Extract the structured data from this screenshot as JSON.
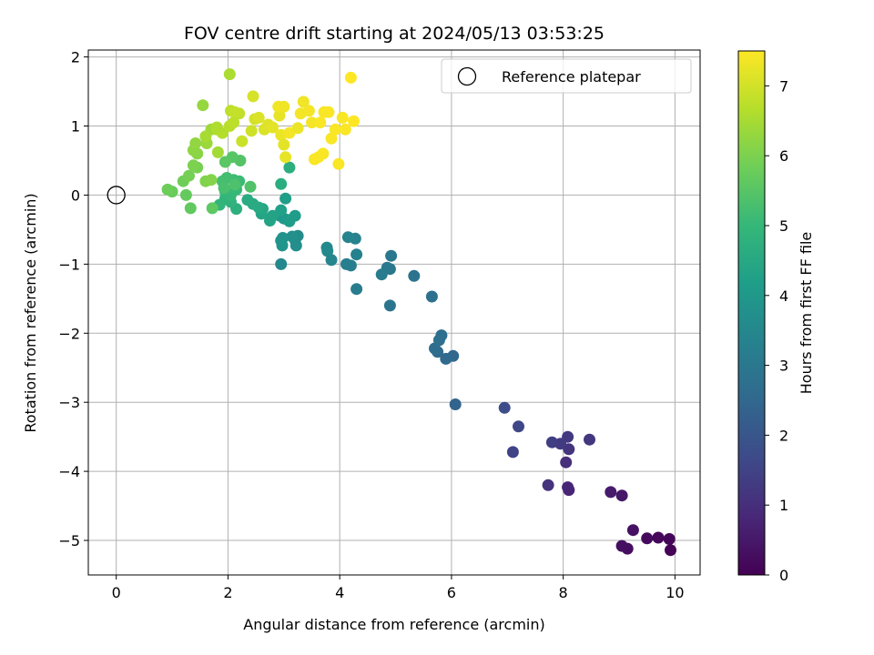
{
  "chart_data": {
    "type": "scatter",
    "title": "FOV centre drift starting at 2024/05/13 03:53:25",
    "xlabel": "Angular distance from reference (arcmin)",
    "ylabel": "Rotation from reference (arcmin)",
    "xlim": [
      -0.5,
      10.45
    ],
    "ylim": [
      -5.5,
      2.1
    ],
    "x_ticks": [
      0,
      2,
      4,
      6,
      8,
      10
    ],
    "x_tick_labels": [
      "0",
      "2",
      "4",
      "6",
      "8",
      "10"
    ],
    "y_ticks": [
      2,
      1,
      0,
      -1,
      -2,
      -3,
      -4,
      -5
    ],
    "y_tick_labels": [
      "2",
      "1",
      "0",
      "−1",
      "−2",
      "−3",
      "−4",
      "−5"
    ],
    "grid": true,
    "legend": {
      "placement": "top-right",
      "entries": [
        "Reference platepar"
      ]
    },
    "reference_point": {
      "name": "Reference platepar",
      "x": 0,
      "y": 0
    },
    "colorbar": {
      "label": "Hours from first FF file",
      "colormap": "viridis",
      "range": [
        0,
        7.5
      ],
      "ticks": [
        0,
        1,
        2,
        3,
        4,
        5,
        6,
        7
      ],
      "tick_labels": [
        "0",
        "1",
        "2",
        "3",
        "4",
        "5",
        "6",
        "7"
      ]
    },
    "points": [
      [
        9.92,
        -5.14,
        0.05
      ],
      [
        9.9,
        -4.98,
        0.1
      ],
      [
        9.7,
        -4.96,
        0.15
      ],
      [
        9.5,
        -4.97,
        0.2
      ],
      [
        9.15,
        -5.12,
        0.25
      ],
      [
        9.05,
        -5.08,
        0.3
      ],
      [
        9.25,
        -4.85,
        0.35
      ],
      [
        9.05,
        -4.35,
        0.45
      ],
      [
        8.85,
        -4.3,
        0.55
      ],
      [
        8.1,
        -4.27,
        0.75
      ],
      [
        8.08,
        -4.23,
        0.8
      ],
      [
        8.05,
        -3.87,
        1.0
      ],
      [
        7.73,
        -4.2,
        1.1
      ],
      [
        8.1,
        -3.68,
        1.15
      ],
      [
        8.47,
        -3.54,
        1.2
      ],
      [
        8.08,
        -3.5,
        1.25
      ],
      [
        7.95,
        -3.6,
        1.3
      ],
      [
        7.8,
        -3.58,
        1.4
      ],
      [
        7.1,
        -3.72,
        1.5
      ],
      [
        7.2,
        -3.35,
        1.6
      ],
      [
        6.95,
        -3.08,
        1.75
      ],
      [
        6.07,
        -3.03,
        2.4
      ],
      [
        6.03,
        -2.33,
        2.5
      ],
      [
        5.9,
        -2.37,
        2.55
      ],
      [
        5.75,
        -2.27,
        2.6
      ],
      [
        5.7,
        -2.22,
        2.65
      ],
      [
        5.82,
        -2.03,
        2.7
      ],
      [
        5.78,
        -2.1,
        2.75
      ],
      [
        5.65,
        -1.47,
        2.8
      ],
      [
        5.33,
        -1.17,
        2.85
      ],
      [
        4.9,
        -1.6,
        2.9
      ],
      [
        4.9,
        -1.07,
        2.95
      ],
      [
        4.92,
        -0.88,
        3.0
      ],
      [
        4.85,
        -1.05,
        3.05
      ],
      [
        4.75,
        -1.15,
        3.1
      ],
      [
        4.3,
        -1.36,
        3.15
      ],
      [
        4.2,
        -1.02,
        3.2
      ],
      [
        4.12,
        -1.0,
        3.25
      ],
      [
        4.3,
        -0.86,
        3.3
      ],
      [
        4.28,
        -0.63,
        3.35
      ],
      [
        4.15,
        -0.61,
        3.4
      ],
      [
        3.85,
        -0.94,
        3.45
      ],
      [
        3.78,
        -0.81,
        3.5
      ],
      [
        3.77,
        -0.76,
        3.55
      ],
      [
        3.25,
        -0.59,
        3.6
      ],
      [
        3.2,
        -0.65,
        3.65
      ],
      [
        3.22,
        -0.73,
        3.7
      ],
      [
        3.15,
        -0.6,
        3.75
      ],
      [
        2.98,
        -0.62,
        3.8
      ],
      [
        2.95,
        -0.66,
        3.85
      ],
      [
        2.97,
        -0.73,
        3.9
      ],
      [
        2.95,
        -1.0,
        3.5
      ],
      [
        2.93,
        -0.3,
        3.95
      ],
      [
        3.0,
        -0.34,
        4.0
      ],
      [
        3.08,
        -0.36,
        4.05
      ],
      [
        3.2,
        -0.3,
        4.1
      ],
      [
        3.1,
        -0.38,
        4.15
      ],
      [
        3.03,
        -0.05,
        4.2
      ],
      [
        2.95,
        -0.22,
        4.25
      ],
      [
        2.8,
        -0.3,
        4.3
      ],
      [
        2.75,
        -0.37,
        4.35
      ],
      [
        2.6,
        -0.27,
        4.4
      ],
      [
        2.62,
        -0.2,
        4.45
      ],
      [
        2.55,
        -0.18,
        4.5
      ],
      [
        2.45,
        -0.13,
        4.55
      ],
      [
        2.35,
        -0.07,
        4.6
      ],
      [
        2.95,
        0.16,
        4.65
      ],
      [
        3.1,
        0.4,
        4.7
      ],
      [
        2.15,
        -0.2,
        4.75
      ],
      [
        2.05,
        -0.1,
        4.8
      ],
      [
        1.95,
        -0.05,
        4.85
      ],
      [
        1.85,
        -0.14,
        4.9
      ],
      [
        1.95,
        0.05,
        4.95
      ],
      [
        2.05,
        0.0,
        5.0
      ],
      [
        2.15,
        0.08,
        5.05
      ],
      [
        2.2,
        0.2,
        5.1
      ],
      [
        2.1,
        0.22,
        5.15
      ],
      [
        1.98,
        0.25,
        5.2
      ],
      [
        1.9,
        0.2,
        5.25
      ],
      [
        1.93,
        0.1,
        5.3
      ],
      [
        2.12,
        0.15,
        5.35
      ],
      [
        2.4,
        0.12,
        5.4
      ],
      [
        2.22,
        0.5,
        5.45
      ],
      [
        2.08,
        0.55,
        5.5
      ],
      [
        1.95,
        0.48,
        5.55
      ],
      [
        1.72,
        -0.19,
        5.6
      ],
      [
        1.33,
        -0.19,
        5.65
      ],
      [
        1.25,
        0.0,
        5.7
      ],
      [
        1.0,
        0.05,
        5.75
      ],
      [
        0.92,
        0.08,
        5.8
      ],
      [
        1.2,
        0.2,
        5.85
      ],
      [
        1.3,
        0.28,
        5.9
      ],
      [
        1.45,
        0.4,
        5.95
      ],
      [
        1.38,
        0.43,
        6.0
      ],
      [
        1.6,
        0.2,
        6.05
      ],
      [
        1.7,
        0.22,
        6.1
      ],
      [
        1.45,
        0.6,
        6.15
      ],
      [
        1.38,
        0.65,
        6.2
      ],
      [
        1.42,
        0.75,
        6.25
      ],
      [
        1.55,
        1.3,
        6.3
      ],
      [
        1.62,
        0.75,
        6.35
      ],
      [
        1.7,
        0.95,
        6.4
      ],
      [
        1.82,
        0.62,
        6.45
      ],
      [
        1.6,
        0.85,
        6.5
      ],
      [
        2.03,
        1.75,
        6.55
      ],
      [
        1.8,
        0.95,
        6.6
      ],
      [
        1.9,
        0.9,
        6.65
      ],
      [
        2.03,
        1.0,
        6.7
      ],
      [
        2.05,
        1.22,
        6.75
      ],
      [
        2.2,
        1.18,
        6.8
      ],
      [
        2.12,
        1.2,
        6.85
      ],
      [
        2.25,
        0.78,
        6.9
      ],
      [
        2.42,
        0.93,
        6.95
      ],
      [
        2.48,
        1.1,
        7.0
      ],
      [
        2.45,
        1.43,
        7.05
      ],
      [
        2.65,
        0.95,
        7.1
      ],
      [
        2.72,
        1.02,
        7.15
      ],
      [
        2.8,
        0.98,
        7.2
      ],
      [
        2.92,
        1.15,
        7.25
      ],
      [
        2.95,
        0.87,
        7.3
      ],
      [
        3.0,
        1.28,
        7.35
      ],
      [
        3.1,
        0.9,
        7.4
      ],
      [
        3.0,
        0.73,
        7.2
      ],
      [
        3.03,
        0.55,
        7.25
      ],
      [
        3.25,
        0.97,
        7.3
      ],
      [
        3.35,
        1.35,
        7.35
      ],
      [
        3.5,
        1.05,
        7.4
      ],
      [
        3.55,
        0.52,
        7.45
      ],
      [
        3.62,
        0.55,
        7.45
      ],
      [
        3.7,
        0.6,
        7.45
      ],
      [
        3.65,
        1.05,
        7.45
      ],
      [
        3.72,
        1.2,
        7.45
      ],
      [
        3.8,
        1.2,
        7.45
      ],
      [
        3.85,
        0.82,
        7.45
      ],
      [
        3.92,
        0.95,
        7.45
      ],
      [
        3.98,
        0.45,
        7.45
      ],
      [
        4.05,
        1.12,
        7.45
      ],
      [
        4.1,
        0.95,
        7.45
      ],
      [
        4.2,
        1.7,
        7.5
      ],
      [
        4.25,
        1.07,
        7.5
      ],
      [
        3.45,
        1.22,
        7.4
      ],
      [
        3.3,
        1.18,
        7.4
      ],
      [
        2.9,
        1.28,
        7.35
      ],
      [
        2.55,
        1.12,
        7.1
      ],
      [
        2.1,
        1.05,
        6.75
      ],
      [
        1.8,
        0.98,
        6.6
      ]
    ]
  }
}
